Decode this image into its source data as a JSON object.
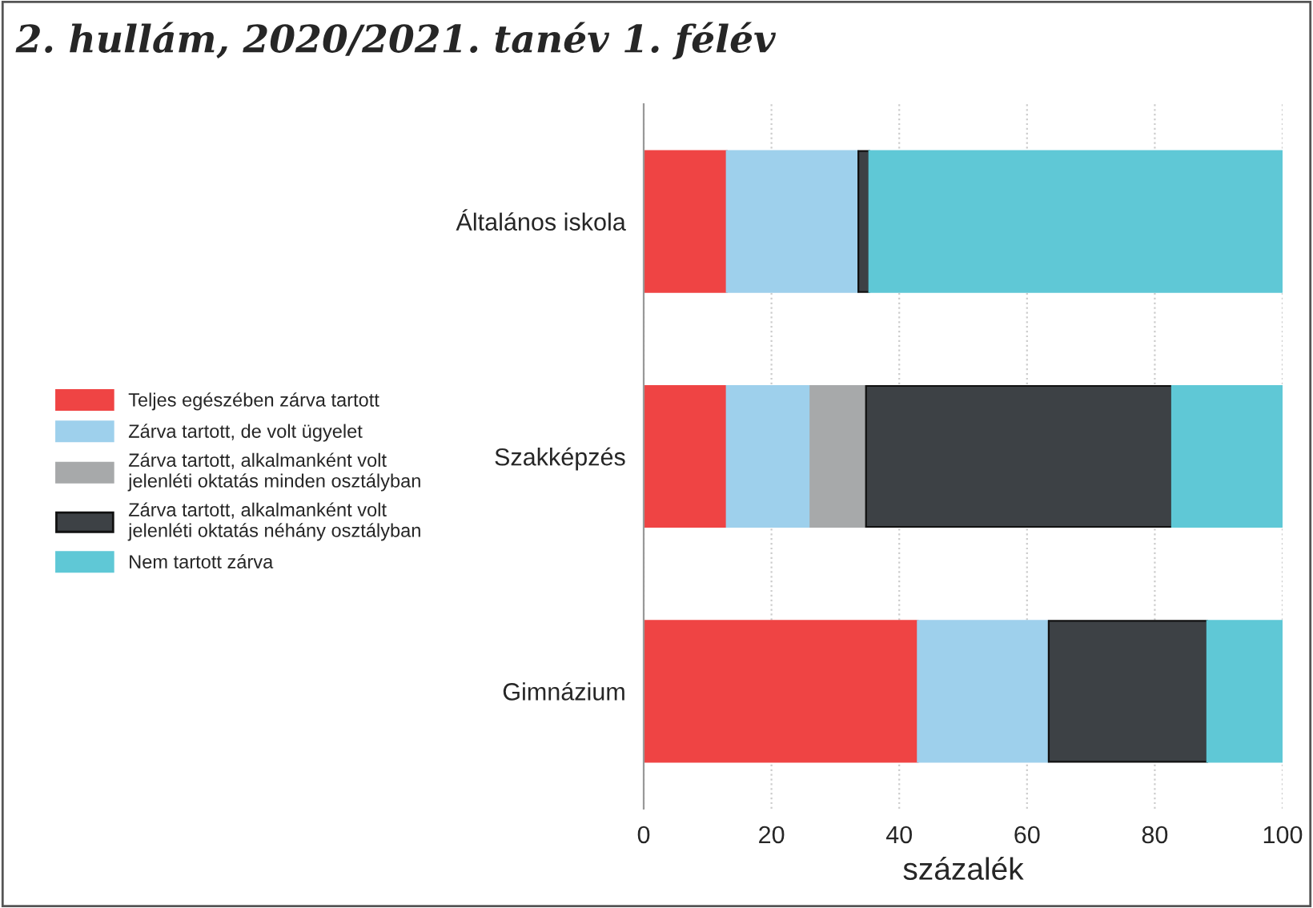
{
  "chart_data": {
    "type": "bar",
    "orientation": "horizontal",
    "stacked": true,
    "title": "2. hullám, 2020/2021. tanév 1. félév",
    "xlabel": "százalék",
    "categories": [
      "Általános iskola",
      "Szakképzés",
      "Gimnázium"
    ],
    "series": [
      {
        "name": "Teljes egészében zárva tartott",
        "color": "#ef4444",
        "values": [
          13,
          13,
          42.9
        ]
      },
      {
        "name": "Zárva tartott, de volt ügyelet",
        "color": "#9ed0ec",
        "values": [
          20.6,
          13.1,
          20.5
        ]
      },
      {
        "name": "Zárva tartott, alkalmanként volt\njelenléti oktatás minden osztályban",
        "color": "#a7a9aa",
        "values": [
          0,
          8.7,
          0
        ]
      },
      {
        "name": "Zárva tartott, alkalmanként volt\njelenléti oktatás néhány osztályban",
        "color": "#3d4145",
        "values": [
          1.7,
          47.9,
          24.8
        ]
      },
      {
        "name": "Nem tartott zárva",
        "color": "#5fc8d6",
        "values": [
          64.7,
          17.3,
          11.8
        ]
      }
    ],
    "xlim": [
      0,
      100
    ],
    "xticks": [
      0,
      20,
      40,
      60,
      80,
      100
    ],
    "grid": "x",
    "legend": "left"
  }
}
